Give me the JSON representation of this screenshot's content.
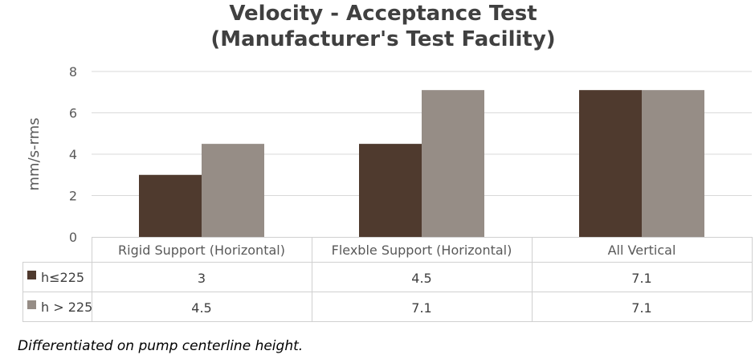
{
  "chart_data": {
    "type": "bar",
    "title": "Velocity - Acceptance Test",
    "subtitle": "(Manufacturer's Test Facility)",
    "ylabel": "mm/s-rms",
    "xlabel": "",
    "ylim": [
      0,
      8
    ],
    "yticks": [
      0,
      2,
      4,
      6,
      8
    ],
    "grid": true,
    "legend": "in data table",
    "categories": [
      "Rigid Support (Horizontal)",
      "Flexble Support (Horizontal)",
      "All Vertical"
    ],
    "series": [
      {
        "name": "h≤225",
        "values": [
          3,
          4.5,
          7.1
        ],
        "labels": [
          "3",
          "4.5",
          "7.1"
        ],
        "color": "#4f3a2e"
      },
      {
        "name": "h > 225",
        "values": [
          4.5,
          7.1,
          7.1
        ],
        "labels": [
          "4.5",
          "7.1",
          "7.1"
        ],
        "color": "#968d86"
      }
    ]
  },
  "footnote": "Differentiated on pump centerline height."
}
